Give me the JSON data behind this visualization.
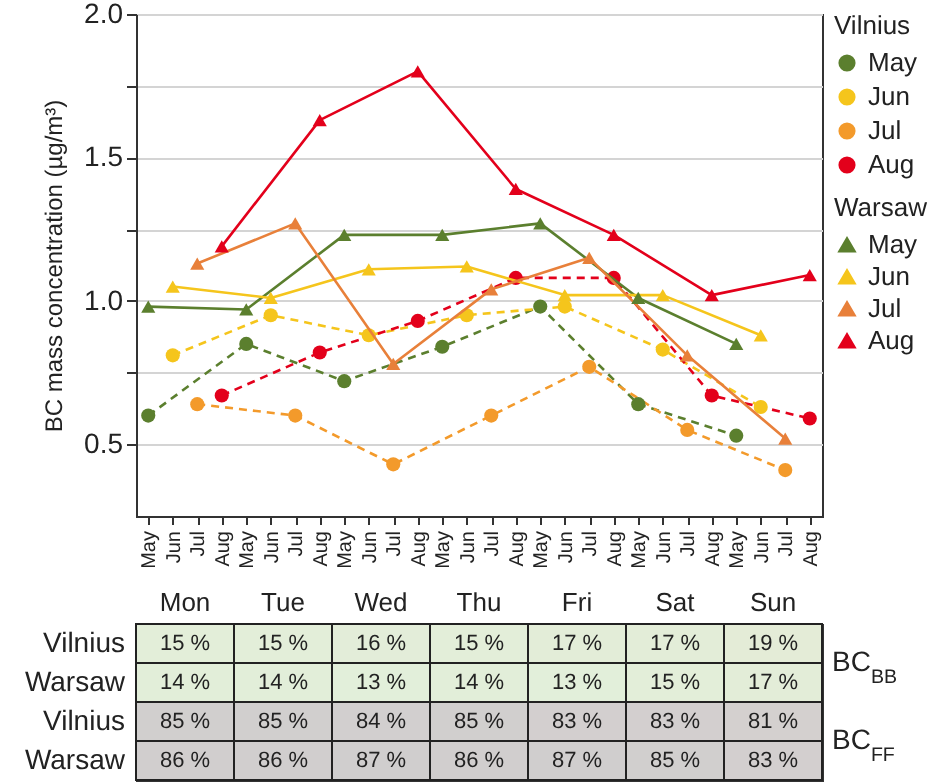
{
  "chart_data": [
    {
      "type": "line",
      "ylabel": "BC mass concentration (µg/m³)",
      "legend_title": [
        "Vilnius",
        "Warsaw"
      ],
      "legend": "right",
      "grid": "y",
      "categories": [
        "May",
        "Jun",
        "Jul",
        "Aug",
        "May",
        "Jun",
        "Jul",
        "Aug",
        "May",
        "Jun",
        "Jul",
        "Aug",
        "May",
        "Jun",
        "Jul",
        "Aug",
        "May",
        "Jun",
        "Jul",
        "Aug",
        "May",
        "Jun",
        "Jul",
        "Aug",
        "May",
        "Jun",
        "Jul",
        "Aug"
      ],
      "ylim": [
        0.25,
        2.0
      ],
      "yticks": [
        {
          "value": 0.5,
          "label": "0.5"
        },
        {
          "value": 0.75,
          "label": null
        },
        {
          "value": 1,
          "label": "1.0"
        },
        {
          "value": 1.25,
          "label": null
        },
        {
          "value": 1.5,
          "label": "1.5"
        },
        {
          "value": 1.75,
          "label": null
        },
        {
          "value": 2,
          "label": "2.0"
        }
      ],
      "series": [
        {
          "name": "May",
          "color": "#5b7f2e",
          "marker": "circle",
          "line_style": "dashed",
          "values": [
            0.6,
            null,
            null,
            null,
            0.85,
            null,
            null,
            null,
            0.72,
            null,
            null,
            null,
            0.84,
            null,
            null,
            null,
            0.98,
            null,
            null,
            null,
            0.64,
            null,
            null,
            null,
            0.53,
            null,
            null,
            null
          ]
        },
        {
          "name": "Jun",
          "color": "#f5c51c",
          "marker": "circle",
          "line_style": "dashed",
          "values": [
            null,
            0.81,
            null,
            null,
            null,
            0.95,
            null,
            null,
            null,
            0.88,
            null,
            null,
            null,
            0.95,
            null,
            null,
            null,
            0.98,
            null,
            null,
            null,
            0.83,
            null,
            null,
            null,
            0.63,
            null,
            null
          ]
        },
        {
          "name": "Jul",
          "color": "#f39a2b",
          "marker": "circle",
          "line_style": "dashed",
          "values": [
            null,
            null,
            0.64,
            null,
            null,
            null,
            0.6,
            null,
            null,
            null,
            0.43,
            null,
            null,
            null,
            0.6,
            null,
            null,
            null,
            0.77,
            null,
            null,
            null,
            0.55,
            null,
            null,
            null,
            0.41,
            null
          ]
        },
        {
          "name": "Aug",
          "color": "#e3001b",
          "marker": "circle",
          "line_style": "dashed",
          "values": [
            null,
            null,
            null,
            0.67,
            null,
            null,
            null,
            0.82,
            null,
            null,
            null,
            0.93,
            null,
            null,
            null,
            1.08,
            null,
            null,
            null,
            1.08,
            null,
            null,
            null,
            0.67,
            null,
            null,
            null,
            0.59
          ]
        },
        {
          "name": "May",
          "color": "#5b7f2e",
          "marker": "triangle",
          "line_style": "solid",
          "values": [
            0.98,
            null,
            null,
            null,
            0.97,
            null,
            null,
            null,
            1.23,
            null,
            null,
            null,
            1.23,
            null,
            null,
            null,
            1.27,
            null,
            null,
            null,
            1.01,
            null,
            null,
            null,
            0.85,
            null,
            null,
            null
          ]
        },
        {
          "name": "Jun",
          "color": "#f5c51c",
          "marker": "triangle",
          "line_style": "solid",
          "values": [
            null,
            1.05,
            null,
            null,
            null,
            1.01,
            null,
            null,
            null,
            1.11,
            null,
            null,
            null,
            1.12,
            null,
            null,
            null,
            1.02,
            null,
            null,
            null,
            1.02,
            null,
            null,
            null,
            0.88,
            null,
            null
          ]
        },
        {
          "name": "Jul",
          "color": "#e8803a",
          "marker": "triangle",
          "line_style": "solid",
          "values": [
            null,
            null,
            1.13,
            null,
            null,
            null,
            1.27,
            null,
            null,
            null,
            0.78,
            null,
            null,
            null,
            1.04,
            null,
            null,
            null,
            1.15,
            null,
            null,
            null,
            0.81,
            null,
            null,
            null,
            0.52,
            null
          ]
        },
        {
          "name": "Aug",
          "color": "#e3001b",
          "marker": "triangle",
          "line_style": "solid",
          "values": [
            null,
            null,
            null,
            1.19,
            null,
            null,
            null,
            1.63,
            null,
            null,
            null,
            1.8,
            null,
            null,
            null,
            1.39,
            null,
            null,
            null,
            1.23,
            null,
            null,
            null,
            1.02,
            null,
            null,
            null,
            1.09
          ]
        }
      ]
    },
    {
      "type": "heatmap",
      "categories": [
        "Mon",
        "Tue",
        "Wed",
        "Thu",
        "Fri",
        "Sat",
        "Sun"
      ],
      "y_categories": [
        "Vilnius",
        "Warsaw",
        "Vilnius",
        "Warsaw"
      ],
      "y2_categories": [
        "BC$_{BB}$",
        null,
        "BC$_{FF}$",
        null
      ],
      "colors": [
        "#e2efda",
        "#d0cece"
      ],
      "cells": [
        [
          15,
          15,
          16,
          15,
          17,
          17,
          19
        ],
        [
          14,
          14,
          13,
          14,
          13,
          15,
          17
        ],
        [
          85,
          85,
          84,
          85,
          83,
          83,
          81
        ],
        [
          86,
          86,
          87,
          86,
          87,
          85,
          83
        ]
      ],
      "cell_labels": [
        [
          "15 %",
          "15 %",
          "16 %",
          "15 %",
          "17 %",
          "17 %",
          "19 %"
        ],
        [
          "14 %",
          "14 %",
          "13 %",
          "14 %",
          "13 %",
          "15 %",
          "17 %"
        ],
        [
          "85 %",
          "85 %",
          "84 %",
          "85 %",
          "83 %",
          "83 %",
          "81 %"
        ],
        [
          "86 %",
          "86 %",
          "87 %",
          "86 %",
          "87 %",
          "85 %",
          "83 %"
        ]
      ]
    }
  ]
}
